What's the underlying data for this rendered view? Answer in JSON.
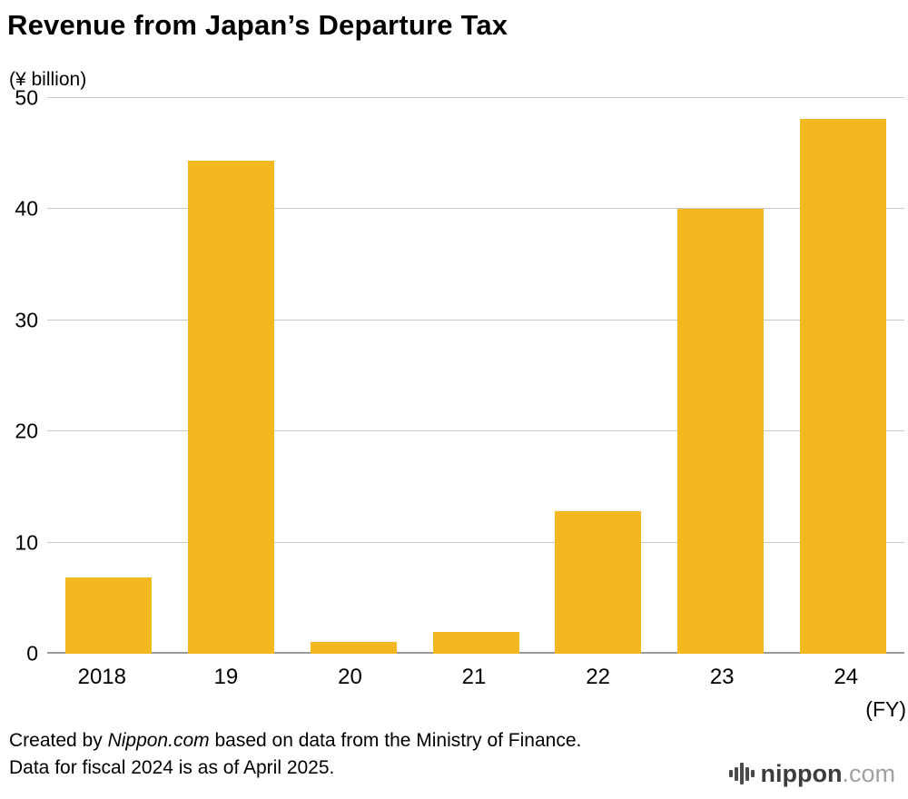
{
  "chart_data": {
    "type": "bar",
    "title": "Revenue from Japan’s Departure Tax",
    "unit_label": "(¥ billion)",
    "categories": [
      "2018",
      "19",
      "20",
      "21",
      "22",
      "23",
      "24"
    ],
    "values": [
      6.9,
      44.4,
      1.1,
      2.0,
      12.8,
      40.0,
      48.1
    ],
    "x_axis_suffix": "(FY)",
    "ylim": [
      0,
      50
    ],
    "yticks": [
      0,
      10,
      20,
      30,
      40,
      50
    ],
    "bar_color": "#f3b71f",
    "grid": true,
    "legend": "none"
  },
  "footer": {
    "line1_prefix": "Created by ",
    "line1_source": "Nippon.com",
    "line1_suffix": " based on data from the Ministry of Finance.",
    "line2": "Data for fiscal 2024 is as of April 2025."
  },
  "logo": {
    "name": "nippon",
    "tld": ".com"
  }
}
